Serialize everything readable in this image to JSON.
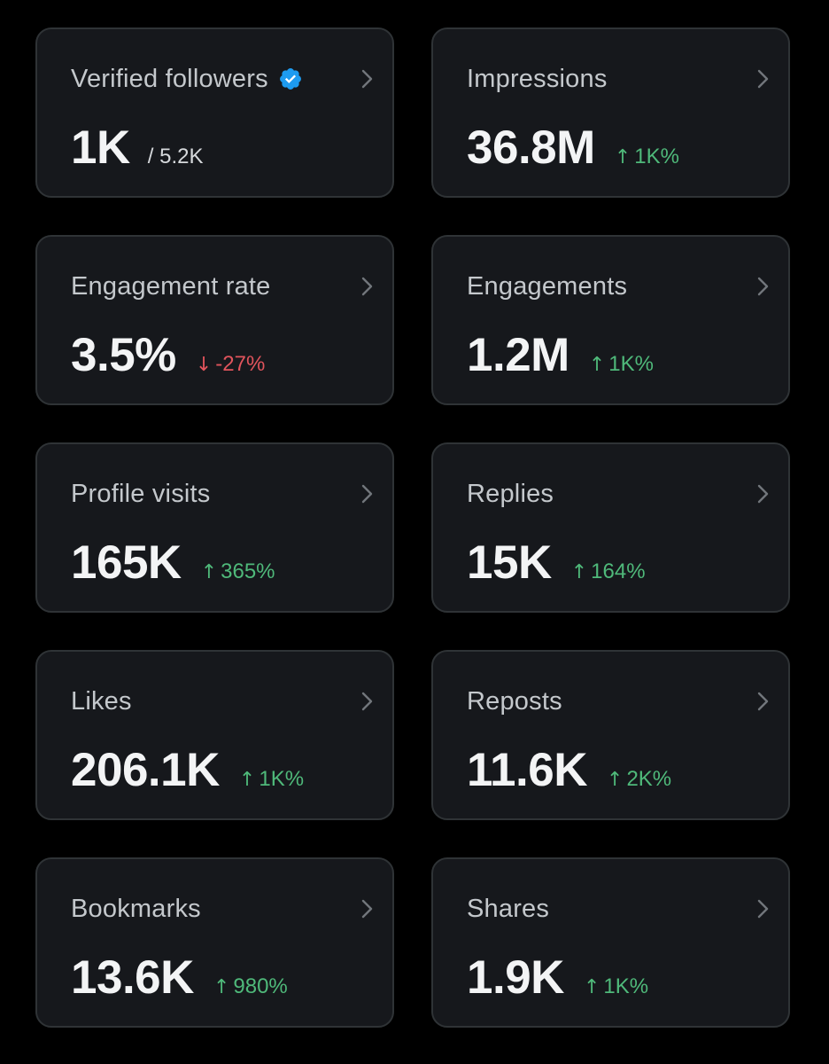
{
  "colors": {
    "background": "#000000",
    "card": "#16181c",
    "border": "#2f3336",
    "up": "#4fb97a",
    "down": "#e0545c",
    "verified": "#1d9bf0"
  },
  "cards": [
    {
      "label": "Verified followers",
      "value": "1K",
      "total": "/ 5.2K",
      "icon": "verified-badge-icon"
    },
    {
      "label": "Impressions",
      "value": "36.8M",
      "change_arrow": "↑",
      "change": "1K%",
      "direction": "up"
    },
    {
      "label": "Engagement rate",
      "value": "3.5%",
      "change_arrow": "↓",
      "change": "-27%",
      "direction": "down"
    },
    {
      "label": "Engagements",
      "value": "1.2M",
      "change_arrow": "↑",
      "change": "1K%",
      "direction": "up"
    },
    {
      "label": "Profile visits",
      "value": "165K",
      "change_arrow": "↑",
      "change": "365%",
      "direction": "up"
    },
    {
      "label": "Replies",
      "value": "15K",
      "change_arrow": "↑",
      "change": "164%",
      "direction": "up"
    },
    {
      "label": "Likes",
      "value": "206.1K",
      "change_arrow": "↑",
      "change": "1K%",
      "direction": "up"
    },
    {
      "label": "Reposts",
      "value": "11.6K",
      "change_arrow": "↑",
      "change": "2K%",
      "direction": "up"
    },
    {
      "label": "Bookmarks",
      "value": "13.6K",
      "change_arrow": "↑",
      "change": "980%",
      "direction": "up"
    },
    {
      "label": "Shares",
      "value": "1.9K",
      "change_arrow": "↑",
      "change": "1K%",
      "direction": "up"
    }
  ]
}
